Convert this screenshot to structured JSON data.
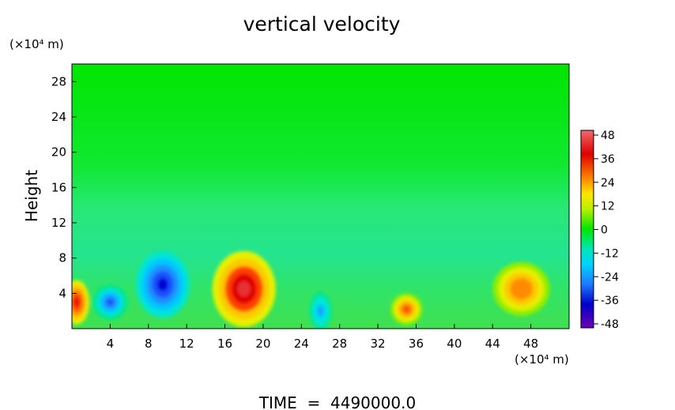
{
  "chart_data": {
    "type": "heatmap",
    "title": "vertical velocity",
    "ylabel": "Height",
    "xlabel": "",
    "x_unit": "(×10⁴ m)",
    "y_unit": "(×10⁴ m)",
    "xlim": [
      0,
      52
    ],
    "ylim": [
      0,
      30
    ],
    "x_ticks": [
      4,
      8,
      12,
      16,
      20,
      24,
      28,
      32,
      36,
      40,
      44,
      48
    ],
    "y_ticks": [
      4,
      8,
      12,
      16,
      20,
      24,
      28
    ],
    "colorbar": {
      "ticks": [
        48,
        36,
        24,
        12,
        0,
        -12,
        -24,
        -36,
        -48
      ],
      "range": [
        -48,
        48
      ]
    },
    "features": [
      {
        "x": 0.5,
        "y": 3,
        "value": 40
      },
      {
        "x": 4,
        "y": 3,
        "value": -33
      },
      {
        "x": 9.5,
        "y": 5,
        "value": -40
      },
      {
        "x": 18,
        "y": 4.5,
        "value": 44
      },
      {
        "x": 26,
        "y": 2,
        "value": -24
      },
      {
        "x": 35,
        "y": 2.2,
        "value": 30
      },
      {
        "x": 47,
        "y": 4.5,
        "value": 26
      }
    ],
    "grid": false,
    "footer": "TIME  =  4490000.0"
  }
}
